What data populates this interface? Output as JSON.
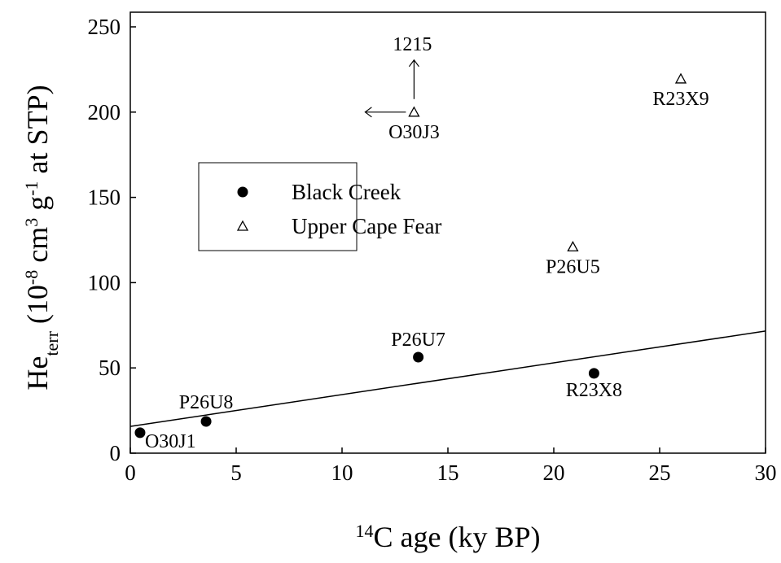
{
  "chart_data": {
    "type": "scatter",
    "x_label": [
      [
        "14",
        "sup"
      ],
      [
        "C age (ky BP)",
        ""
      ]
    ],
    "y_label": [
      [
        "He",
        ""
      ],
      [
        "terr",
        "sub"
      ],
      [
        " (10",
        ""
      ],
      [
        "-8",
        "sup"
      ],
      [
        " cm",
        ""
      ],
      [
        "3",
        "sup"
      ],
      [
        " g",
        ""
      ],
      [
        "-1",
        "sup"
      ],
      [
        " at STP)",
        ""
      ]
    ],
    "xlim": [
      0,
      30
    ],
    "xticks": [
      0,
      5,
      10,
      15,
      20,
      25,
      30
    ],
    "ylim": [
      0,
      250
    ],
    "yticks": [
      0,
      50,
      100,
      150,
      200,
      250
    ],
    "legend": "upper-left",
    "series": [
      {
        "name": "Black Creek",
        "marker": "circle",
        "color": "#000000",
        "x": [
          0.46,
          3.58,
          13.6,
          21.9
        ],
        "values": [
          12,
          18.6,
          56.3,
          46.8
        ],
        "point_labels": [
          "O30J1",
          "P26U8",
          "P26U7",
          "R23X8"
        ]
      },
      {
        "name": "Upper Cape Fear",
        "marker": "triangle",
        "color": "#000000",
        "x": [
          13.4,
          20.9,
          26.0
        ],
        "values": [
          200,
          121,
          219.5
        ],
        "point_labels": [
          "O30J3",
          "P26U5",
          "R23X9"
        ]
      }
    ],
    "trend_line": {
      "x": [
        0,
        30
      ],
      "values": [
        15.7,
        71.6
      ]
    },
    "annotation": "1215"
  }
}
